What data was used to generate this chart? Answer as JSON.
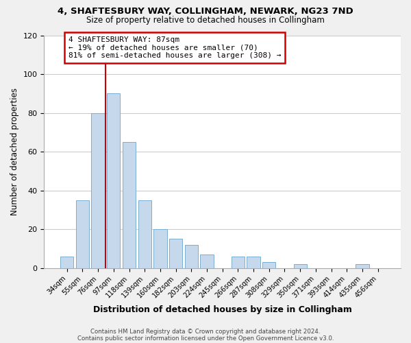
{
  "title1": "4, SHAFTESBURY WAY, COLLINGHAM, NEWARK, NG23 7ND",
  "title2": "Size of property relative to detached houses in Collingham",
  "xlabel": "Distribution of detached houses by size in Collingham",
  "ylabel": "Number of detached properties",
  "bar_labels": [
    "34sqm",
    "55sqm",
    "76sqm",
    "97sqm",
    "118sqm",
    "139sqm",
    "160sqm",
    "182sqm",
    "203sqm",
    "224sqm",
    "245sqm",
    "266sqm",
    "287sqm",
    "308sqm",
    "329sqm",
    "350sqm",
    "371sqm",
    "393sqm",
    "414sqm",
    "435sqm",
    "456sqm"
  ],
  "bar_values": [
    6,
    35,
    80,
    90,
    65,
    35,
    20,
    15,
    12,
    7,
    0,
    6,
    6,
    3,
    0,
    2,
    0,
    0,
    0,
    2,
    0
  ],
  "bar_color": "#c6d9ec",
  "bar_edge_color": "#7aaed0",
  "property_line_idx": 3,
  "annotation_title": "4 SHAFTESBURY WAY: 87sqm",
  "annotation_line1": "← 19% of detached houses are smaller (70)",
  "annotation_line2": "81% of semi-detached houses are larger (308) →",
  "vline_color": "#cc0000",
  "annotation_box_edge": "#cc0000",
  "ylim": [
    0,
    120
  ],
  "footer1": "Contains HM Land Registry data © Crown copyright and database right 2024.",
  "footer2": "Contains public sector information licensed under the Open Government Licence v3.0.",
  "bg_color": "#f0f0f0",
  "plot_bg_color": "#ffffff",
  "grid_color": "#cccccc"
}
